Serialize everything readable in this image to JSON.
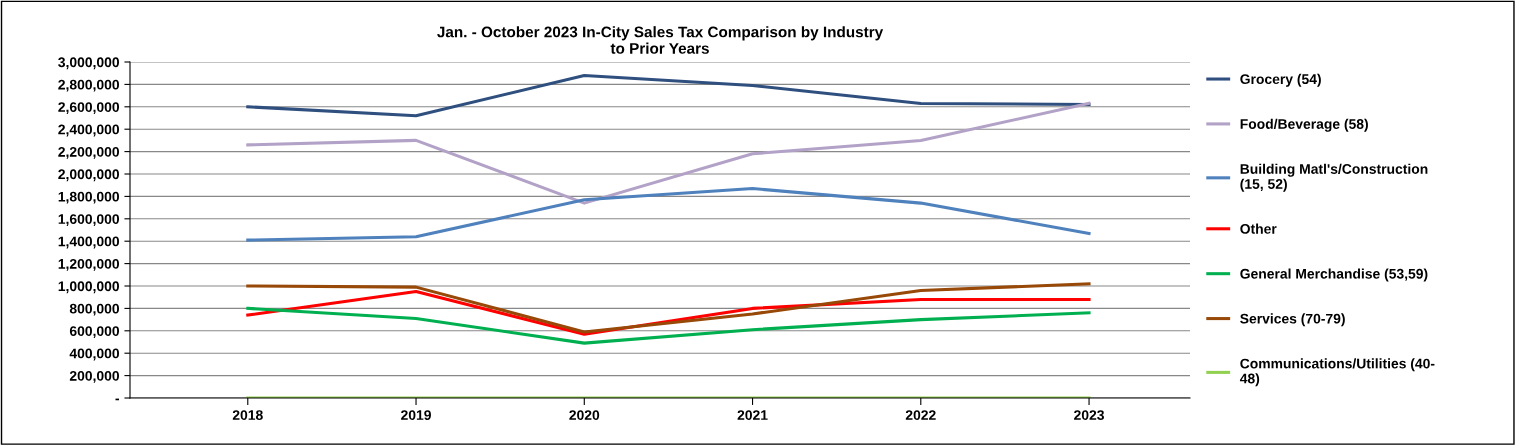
{
  "chart_data": {
    "type": "line",
    "title": "Jan. - October 2023 In-City Sales Tax Comparison by Industry\nto Prior Years",
    "categories": [
      "2018",
      "2019",
      "2020",
      "2021",
      "2022",
      "2023"
    ],
    "series": [
      {
        "name": "Grocery (54)",
        "color": "#2f4f7f",
        "values": [
          2600000,
          2520000,
          2880000,
          2790000,
          2630000,
          2620000
        ]
      },
      {
        "name": "Food/Beverage (58)",
        "color": "#b3a2c7",
        "values": [
          2260000,
          2300000,
          1740000,
          2180000,
          2300000,
          2630000
        ]
      },
      {
        "name": "Building Matl's/Construction\n(15, 52)",
        "color": "#4f81bd",
        "values": [
          1410000,
          1440000,
          1770000,
          1870000,
          1740000,
          1470000
        ]
      },
      {
        "name": "Other",
        "color": "#ff0000",
        "values": [
          740000,
          950000,
          570000,
          800000,
          880000,
          880000
        ]
      },
      {
        "name": "General Merchandise (53,59)",
        "color": "#00b050",
        "values": [
          800000,
          710000,
          490000,
          610000,
          700000,
          760000
        ]
      },
      {
        "name": "Services (70-79)",
        "color": "#984807",
        "values": [
          1000000,
          990000,
          590000,
          750000,
          960000,
          1020000
        ]
      },
      {
        "name": "Communications/Utilities (40-\n48)",
        "color": "#92d050",
        "values": [
          0,
          0,
          0,
          0,
          0,
          0
        ]
      }
    ],
    "ylim": [
      0,
      3000000
    ],
    "yticks": [
      {
        "value": 0,
        "label": "-"
      },
      {
        "value": 200000,
        "label": "200,000"
      },
      {
        "value": 400000,
        "label": "400,000"
      },
      {
        "value": 600000,
        "label": "600,000"
      },
      {
        "value": 800000,
        "label": "800,000"
      },
      {
        "value": 1000000,
        "label": "1,000,000"
      },
      {
        "value": 1200000,
        "label": "1,200,000"
      },
      {
        "value": 1400000,
        "label": "1,400,000"
      },
      {
        "value": 1600000,
        "label": "1,600,000"
      },
      {
        "value": 1800000,
        "label": "1,800,000"
      },
      {
        "value": 2000000,
        "label": "2,000,000"
      },
      {
        "value": 2200000,
        "label": "2,200,000"
      },
      {
        "value": 2400000,
        "label": "2,400,000"
      },
      {
        "value": 2600000,
        "label": "2,600,000"
      },
      {
        "value": 2800000,
        "label": "2,800,000"
      },
      {
        "value": 3000000,
        "label": "3,000,000"
      }
    ],
    "grid": "y",
    "legend": "right",
    "marker": "none",
    "line_style": "solid"
  }
}
